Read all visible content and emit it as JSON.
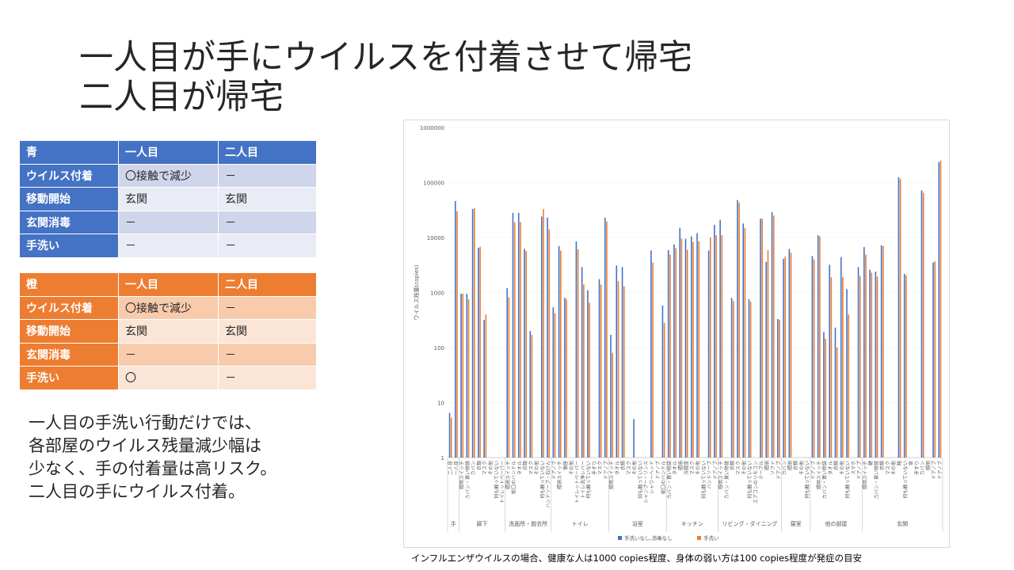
{
  "slide": {
    "title_line1": "一人目が手にウイルスを付着させて帰宅",
    "title_line2": "二人目が帰宅"
  },
  "table_blue": {
    "headers": [
      "青",
      "一人目",
      "二人目"
    ],
    "rows": [
      {
        "label": "ウイルス付着",
        "first": "〇接触で減少",
        "second": "－"
      },
      {
        "label": "移動開始",
        "first": "玄関",
        "second": "玄関"
      },
      {
        "label": "玄関消毒",
        "first": "－",
        "second": "－"
      },
      {
        "label": "手洗い",
        "first": "－",
        "second": "－"
      }
    ]
  },
  "table_orange": {
    "headers": [
      "橙",
      "一人目",
      "二人目"
    ],
    "rows": [
      {
        "label": "ウイルス付着",
        "first": "〇接触で減少",
        "second": "－"
      },
      {
        "label": "移動開始",
        "first": "玄関",
        "second": "玄関"
      },
      {
        "label": "玄関消毒",
        "first": "－",
        "second": "－"
      },
      {
        "label": "手洗い",
        "first": "〇",
        "second": "－"
      }
    ]
  },
  "note": {
    "line1": "一人目の手洗い行動だけでは、",
    "line2": "各部屋のウイルス残量減少幅は",
    "line3": "少なく、手の付着量は高リスク。",
    "line4": "二人目の手にウイルス付着。"
  },
  "caption": "インフルエンザウイルスの場合、健康な人は1000 copies程度、身体の弱い方は100 copies程度が発症の目安",
  "colors": {
    "blue": "#4472c4",
    "orange": "#ed7d31"
  },
  "chart_data": {
    "type": "bar",
    "scale": "log",
    "ylabel": "ウイルス残量(copies)",
    "ylim": [
      1,
      1000000
    ],
    "yticks": [
      "1",
      "10",
      "100",
      "1000",
      "10000",
      "100000",
      "1000000"
    ],
    "legend_position": "bottom",
    "groups": [
      {
        "name": "手",
        "count": 2
      },
      {
        "name": "廊下",
        "count": 8
      },
      {
        "name": "洗面所・脱衣所",
        "count": 8
      },
      {
        "name": "トイレ",
        "count": 10
      },
      {
        "name": "浴室",
        "count": 10
      },
      {
        "name": "キッチン",
        "count": 9
      },
      {
        "name": "リビング・ダイニング",
        "count": 11
      },
      {
        "name": "寝室",
        "count": 5
      },
      {
        "name": "他の部屋",
        "count": 9
      },
      {
        "name": "玄関",
        "count": 14
      }
    ],
    "categories": [
      "二人目",
      "一人目",
      "照明スイッチ",
      "カバン・買い物袋",
      "カバン",
      "衣類",
      "マスク",
      "その他",
      "何も触っていない",
      "トイレットペーパー",
      "照明スイッチ",
      "蛇口のハンドル",
      "タオル",
      "衣類",
      "マスク",
      "その他",
      "何も触っていない",
      "ハンドソープ・石けん",
      "ドアノブ",
      "照明スイッチ",
      "便座",
      "その他",
      "トイレットペーパー",
      "トイレ洗浄レバー",
      "何も触っていない",
      "手すり",
      "マスク",
      "ドアノブ",
      "照明スイッチ",
      "タオル",
      "衣類",
      "マスク",
      "その他",
      "何も触っていない",
      "シャンプー・リンス",
      "シャワーヘッド",
      "ドアノブ",
      "蛇口のハンドル",
      "カバン・買い物袋",
      "タオル",
      "照明",
      "冷蔵庫",
      "マスク",
      "その他",
      "何も触っていない",
      "ハンドソープ",
      "ドアノブ",
      "照明スイッチ",
      "カバン・買い物袋",
      "衣類",
      "マスク",
      "その他",
      "何も触っていない",
      "エアコンのリモコン",
      "テーブル",
      "照明",
      "ソファ",
      "ドアノブ",
      "カバン",
      "照明",
      "衣類",
      "その他",
      "何も触っていない",
      "ドアノブ",
      "照明スイッチ",
      "カバン・買い物袋",
      "タオル",
      "衣類",
      "その他",
      "何も触っていない",
      "スマホ",
      "ドアノブ",
      "照明スイッチ",
      "鍵",
      "カバン・買い物袋",
      "衣類",
      "マスク",
      "その他",
      "靴",
      "何も触っていない",
      "傘",
      "手すり",
      "カバン",
      "照明",
      "ドアノブ",
      "ドアノブ"
    ],
    "series": [
      {
        "name": "手洗いなし,消毒なし",
        "color": "#4472c4",
        "values": [
          6.5,
          46000,
          950,
          950,
          33000,
          6500,
          320,
          1,
          1,
          1,
          1200,
          28000,
          28000,
          6200,
          200,
          1,
          24000,
          23000,
          540,
          7000,
          800,
          1,
          8500,
          2900,
          1100,
          1,
          1750,
          23000,
          170,
          3100,
          2900,
          1,
          5,
          1,
          1,
          5800,
          1,
          580,
          5900,
          7500,
          15000,
          9500,
          10500,
          12000,
          1,
          5800,
          17000,
          21000,
          1,
          800,
          48000,
          18000,
          760,
          1,
          22000,
          3600,
          29000,
          330,
          4100,
          6200,
          1,
          1,
          1,
          4600,
          11000,
          190,
          3200,
          230,
          4400,
          1150,
          1,
          2900,
          6700,
          2600,
          2400,
          7200,
          1,
          1,
          125000,
          2200,
          1,
          1,
          72000,
          1,
          3500,
          235000
        ]
      },
      {
        "name": "手洗い",
        "color": "#ed7d31",
        "values": [
          5.3,
          30000,
          950,
          750,
          34000,
          6800,
          400,
          1,
          1,
          1,
          820,
          19000,
          19000,
          5700,
          170,
          1,
          33000,
          14000,
          420,
          5800,
          750,
          1,
          6100,
          1400,
          650,
          1,
          1400,
          19500,
          80,
          1600,
          1300,
          1,
          1,
          1,
          1,
          3500,
          1,
          280,
          4900,
          6400,
          9600,
          6000,
          8300,
          8500,
          1,
          10000,
          11000,
          11000,
          1,
          700,
          43000,
          15000,
          680,
          1,
          22000,
          5900,
          25000,
          320,
          4500,
          5300,
          1,
          1,
          1,
          4000,
          10500,
          145,
          1900,
          100,
          1900,
          400,
          1,
          2000,
          4900,
          2300,
          1950,
          7000,
          1,
          1,
          115000,
          2050,
          1,
          1,
          65000,
          1,
          3700,
          250000
        ]
      }
    ]
  }
}
